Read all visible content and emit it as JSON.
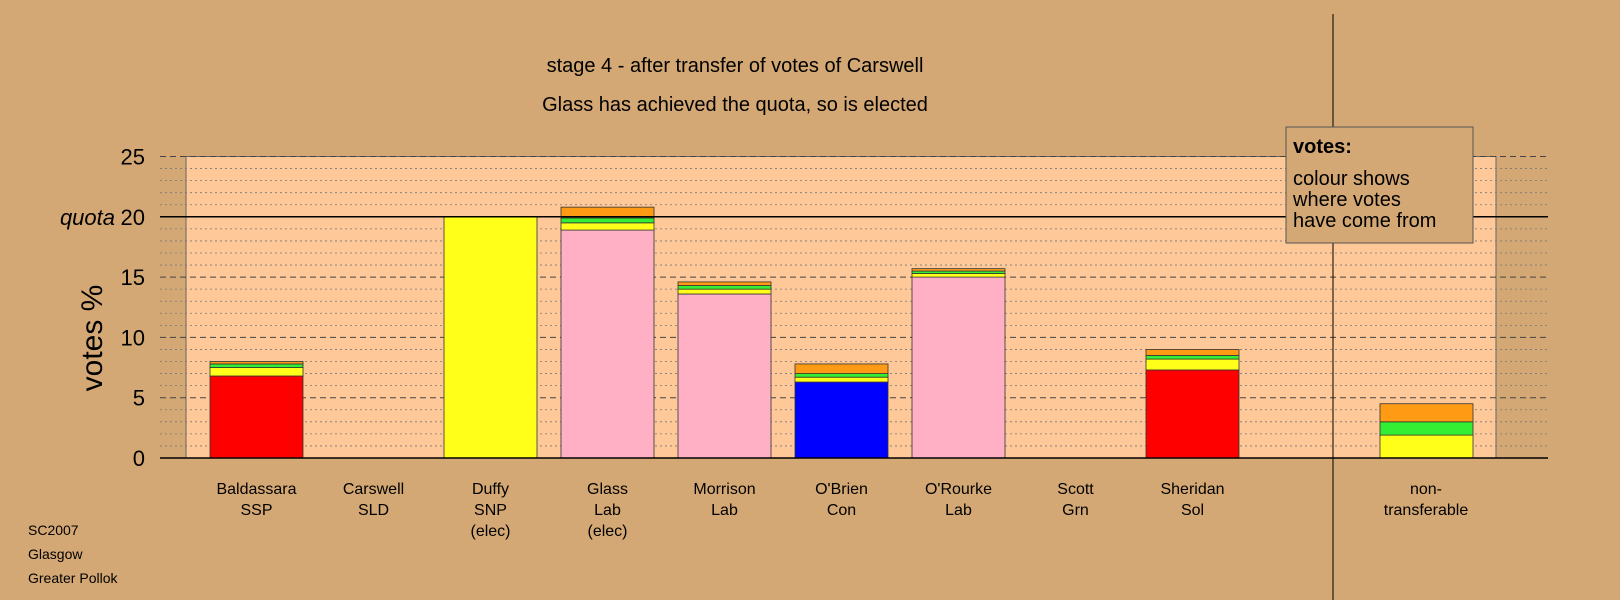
{
  "chart_data": {
    "type": "bar",
    "title": "stage 4 - after transfer of votes of Carswell",
    "subtitle": "Glass has achieved the quota, so is elected",
    "ylabel": "votes %",
    "quota_label": "quota",
    "quota": 20,
    "ylim": [
      0,
      25
    ],
    "yticks": [
      0,
      5,
      10,
      15,
      20,
      25
    ],
    "grid": true,
    "legend": {
      "placement": "top-right",
      "title": "votes:",
      "lines": [
        "colour shows",
        "where votes",
        "have come from"
      ]
    },
    "colors": {
      "red": "#ff0000",
      "yellow": "#ffff1a",
      "green": "#33ee33",
      "orange": "#ff9a14",
      "pink": "#ffb0c4",
      "blue": "#0000ff"
    },
    "candidates": [
      {
        "name": "Baldassara",
        "party": "SSP",
        "note": "",
        "segments": [
          {
            "color": "red",
            "value": 6.8
          },
          {
            "color": "yellow",
            "value": 0.7
          },
          {
            "color": "green",
            "value": 0.3
          },
          {
            "color": "orange",
            "value": 0.2
          }
        ]
      },
      {
        "name": "Carswell",
        "party": "SLD",
        "note": "",
        "segments": []
      },
      {
        "name": "Duffy",
        "party": "SNP",
        "note": "(elec)",
        "segments": [
          {
            "color": "yellow",
            "value": 20.0
          }
        ]
      },
      {
        "name": "Glass",
        "party": "Lab",
        "note": "(elec)",
        "segments": [
          {
            "color": "pink",
            "value": 18.9
          },
          {
            "color": "yellow",
            "value": 0.6
          },
          {
            "color": "green",
            "value": 0.4
          },
          {
            "color": "orange",
            "value": 0.9
          }
        ]
      },
      {
        "name": "Morrison",
        "party": "Lab",
        "note": "",
        "segments": [
          {
            "color": "pink",
            "value": 13.6
          },
          {
            "color": "yellow",
            "value": 0.4
          },
          {
            "color": "green",
            "value": 0.3
          },
          {
            "color": "orange",
            "value": 0.3
          }
        ]
      },
      {
        "name": "O'Brien",
        "party": "Con",
        "note": "",
        "segments": [
          {
            "color": "blue",
            "value": 6.3
          },
          {
            "color": "yellow",
            "value": 0.4
          },
          {
            "color": "green",
            "value": 0.3
          },
          {
            "color": "orange",
            "value": 0.8
          }
        ]
      },
      {
        "name": "O'Rourke",
        "party": "Lab",
        "note": "",
        "segments": [
          {
            "color": "pink",
            "value": 15.0
          },
          {
            "color": "yellow",
            "value": 0.3
          },
          {
            "color": "green",
            "value": 0.2
          },
          {
            "color": "orange",
            "value": 0.2
          }
        ]
      },
      {
        "name": "Scott",
        "party": "Grn",
        "note": "",
        "segments": []
      },
      {
        "name": "Sheridan",
        "party": "Sol",
        "note": "",
        "segments": [
          {
            "color": "red",
            "value": 7.3
          },
          {
            "color": "yellow",
            "value": 0.9
          },
          {
            "color": "green",
            "value": 0.3
          },
          {
            "color": "orange",
            "value": 0.5
          }
        ]
      }
    ],
    "nontransferable": {
      "label_lines": [
        "non-",
        "transferable"
      ],
      "segments": [
        {
          "color": "yellow",
          "value": 1.9
        },
        {
          "color": "green",
          "value": 1.1
        },
        {
          "color": "orange",
          "value": 1.5
        }
      ]
    }
  },
  "footer": {
    "lines": [
      "SC2007",
      "Glasgow",
      "Greater Pollok"
    ]
  }
}
